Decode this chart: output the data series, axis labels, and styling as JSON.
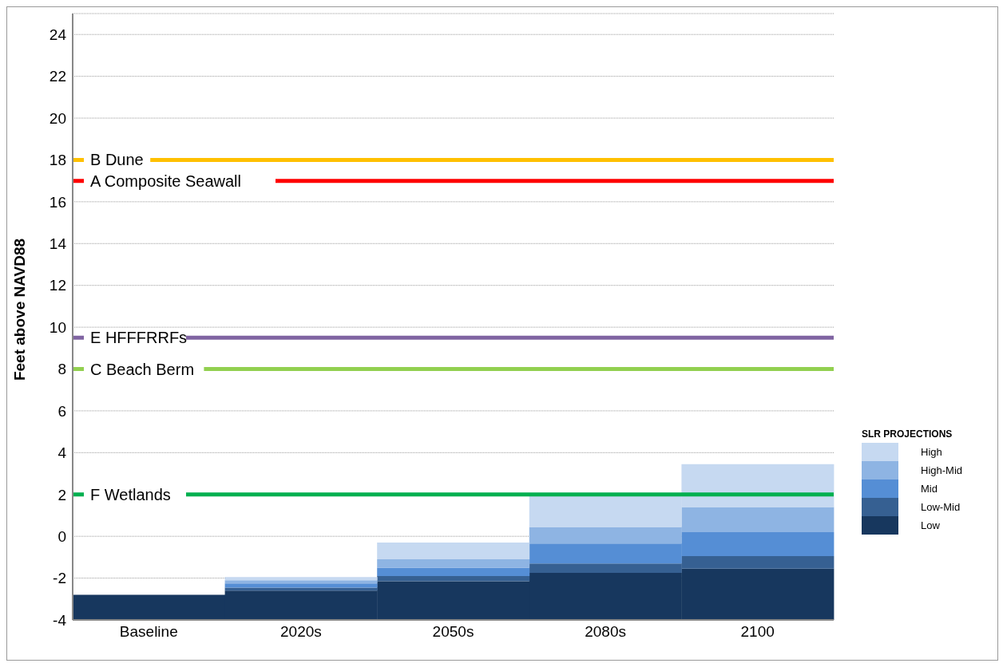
{
  "chart_data": {
    "type": "bar",
    "ylabel": "Feet above NAVD88",
    "legend_title": "SLR PROJECTIONS",
    "categories": [
      "Baseline",
      "2020s",
      "2050s",
      "2080s",
      "2100"
    ],
    "stacked": true,
    "series": [
      {
        "name": "Low",
        "color": "#17375e",
        "base": [
          -4,
          -4,
          -4,
          -4,
          -4
        ],
        "values": [
          1.2,
          1.4,
          1.85,
          2.25,
          2.45
        ]
      },
      {
        "name": "Low-Mid",
        "color": "#366092",
        "values": [
          null,
          0.15,
          0.25,
          0.45,
          0.6
        ]
      },
      {
        "name": "Mid",
        "color": "#558ed5",
        "values": [
          null,
          0.2,
          0.4,
          0.95,
          1.15
        ]
      },
      {
        "name": "High-Mid",
        "color": "#8eb4e3",
        "values": [
          null,
          0.15,
          0.4,
          0.8,
          1.2
        ]
      },
      {
        "name": "High",
        "color": "#c6d9f1",
        "values": [
          null,
          0.15,
          0.8,
          1.5,
          2.05
        ]
      }
    ],
    "ylim": [
      -4,
      25
    ],
    "yticks": [
      -4,
      -2,
      0,
      2,
      4,
      6,
      8,
      10,
      12,
      14,
      16,
      18,
      20,
      22,
      24
    ],
    "grid": "y",
    "legend": "right",
    "ref_lines": [
      {
        "axis": "y",
        "value": 18,
        "label": "B Dune",
        "color": "#ffc000"
      },
      {
        "axis": "y",
        "value": 17,
        "label": "A  Composite Seawall",
        "color": "#ff0000"
      },
      {
        "axis": "y",
        "value": 9.5,
        "label": "E HFFFRRFs",
        "color": "#8064a2"
      },
      {
        "axis": "y",
        "value": 8,
        "label": "C Beach Berm",
        "color": "#92d050"
      },
      {
        "axis": "y",
        "value": 2,
        "label": "F Wetlands",
        "color": "#00b050"
      }
    ]
  }
}
